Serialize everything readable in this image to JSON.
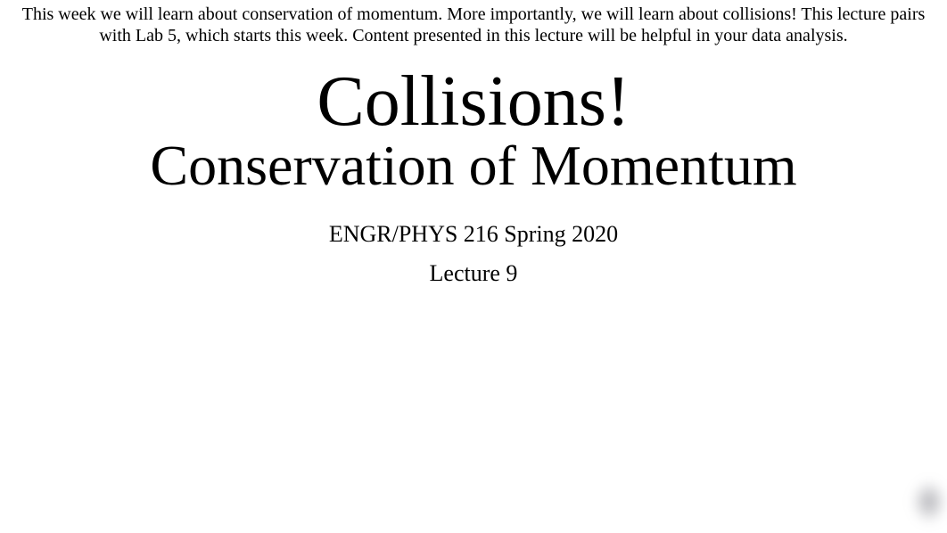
{
  "intro": "This week we will learn about conservation of momentum. More importantly, we will learn about collisions! This lecture pairs with Lab 5, which starts this week. Content presented in this lecture will be helpful in your data analysis.",
  "title": {
    "main": "Collisions!",
    "sub": "Conservation of Momentum"
  },
  "course": "ENGR/PHYS 216 Spring 2020",
  "lecture": "Lecture 9",
  "style": {
    "background_color": "#ffffff",
    "text_color": "#000000",
    "font_family": "Georgia, Times New Roman, serif",
    "intro_fontsize": 20,
    "title_main_fontsize": 80,
    "title_sub_fontsize": 64,
    "course_fontsize": 26,
    "lecture_fontsize": 26
  }
}
